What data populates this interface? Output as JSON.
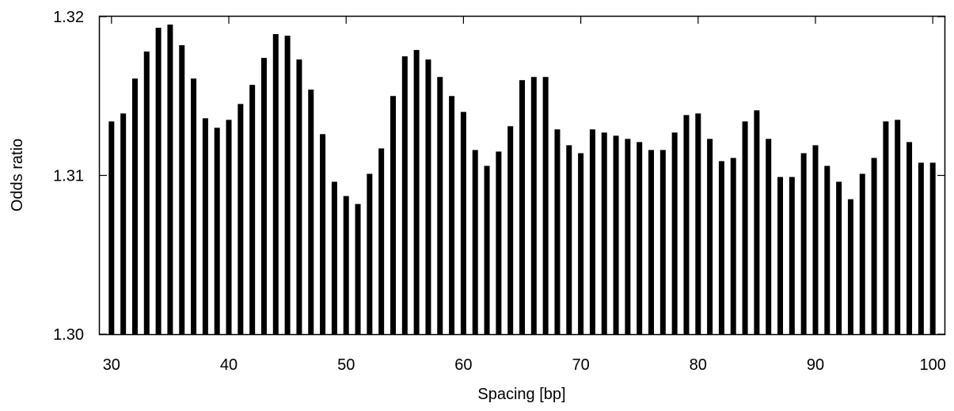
{
  "chart_data": {
    "type": "bar",
    "title": "",
    "xlabel": "Spacing [bp]",
    "ylabel": "Odds ratio",
    "xlim": [
      29,
      101
    ],
    "ylim": [
      1.3,
      1.32
    ],
    "xticks": [
      "30",
      "40",
      "50",
      "60",
      "70",
      "80",
      "90",
      "100"
    ],
    "yticks": [
      "1.30",
      "1.31",
      "1.32"
    ],
    "grid": false,
    "bar_color": "#000000",
    "x": [
      30,
      31,
      32,
      33,
      34,
      35,
      36,
      37,
      38,
      39,
      40,
      41,
      42,
      43,
      44,
      45,
      46,
      47,
      48,
      49,
      50,
      51,
      52,
      53,
      54,
      55,
      56,
      57,
      58,
      59,
      60,
      61,
      62,
      63,
      64,
      65,
      66,
      67,
      68,
      69,
      70,
      71,
      72,
      73,
      74,
      75,
      76,
      77,
      78,
      79,
      80,
      81,
      82,
      83,
      84,
      85,
      86,
      87,
      88,
      89,
      90,
      91,
      92,
      93,
      94,
      95,
      96,
      97,
      98,
      99,
      100
    ],
    "values": [
      1.3134,
      1.3139,
      1.3161,
      1.3178,
      1.3193,
      1.3195,
      1.3182,
      1.3161,
      1.3136,
      1.313,
      1.3135,
      1.3145,
      1.3157,
      1.3174,
      1.3189,
      1.3188,
      1.3173,
      1.3154,
      1.3126,
      1.3096,
      1.3087,
      1.3082,
      1.3101,
      1.3117,
      1.315,
      1.3175,
      1.3179,
      1.3173,
      1.3162,
      1.315,
      1.314,
      1.3116,
      1.3106,
      1.3115,
      1.3131,
      1.316,
      1.3162,
      1.3162,
      1.3129,
      1.3119,
      1.3114,
      1.3129,
      1.3127,
      1.3125,
      1.3123,
      1.3121,
      1.3116,
      1.3116,
      1.3127,
      1.3138,
      1.3139,
      1.3123,
      1.3109,
      1.3111,
      1.3134,
      1.3141,
      1.3123,
      1.3099,
      1.3099,
      1.3114,
      1.3119,
      1.3106,
      1.3096,
      1.3085,
      1.3101,
      1.3111,
      1.3134,
      1.3135,
      1.3121,
      1.3108,
      1.3108
    ]
  }
}
